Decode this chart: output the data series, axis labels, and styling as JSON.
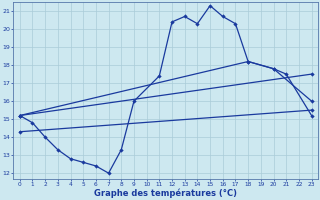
{
  "xlabel": "Graphe des températures (°C)",
  "background_color": "#cde8f0",
  "line_color": "#1a3a9e",
  "grid_color": "#aaccd8",
  "xmin": 0,
  "xmax": 23,
  "ymin": 12,
  "ymax": 21,
  "line1_x": [
    0,
    1,
    2,
    3,
    4,
    5,
    6,
    7,
    8,
    9,
    11,
    12,
    13,
    14,
    15,
    16,
    17,
    18,
    20,
    21,
    23
  ],
  "line1_y": [
    15.2,
    14.8,
    14.0,
    13.3,
    12.8,
    12.6,
    12.4,
    12.0,
    13.3,
    16.0,
    17.4,
    20.4,
    20.7,
    20.3,
    21.3,
    20.7,
    20.3,
    18.2,
    17.8,
    17.5,
    15.2
  ],
  "line2_x": [
    0,
    18,
    20,
    23
  ],
  "line2_y": [
    15.2,
    18.2,
    17.8,
    16.0
  ],
  "line3_x": [
    0,
    23
  ],
  "line3_y": [
    15.2,
    17.5
  ],
  "line4_x": [
    0,
    23
  ],
  "line4_y": [
    14.3,
    15.5
  ]
}
